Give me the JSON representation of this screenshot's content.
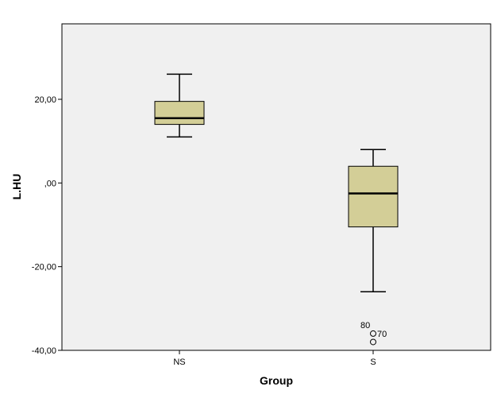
{
  "chart_data": {
    "type": "boxplot",
    "xlabel": "Group",
    "ylabel": "L.HU",
    "ylim": [
      -40,
      40
    ],
    "yticks": [
      -40,
      -20,
      0,
      20
    ],
    "ytick_labels": [
      "-40,00",
      "-20,00",
      ",00",
      "20,00"
    ],
    "categories": [
      "NS",
      "S"
    ],
    "boxes": [
      {
        "category": "NS",
        "whisker_low": 11,
        "q1": 14,
        "median": 15.5,
        "q3": 19.5,
        "whisker_high": 26,
        "outliers": []
      },
      {
        "category": "S",
        "whisker_low": -26,
        "q1": -10.5,
        "median": -2.5,
        "q3": 4,
        "whisker_high": 8,
        "outliers": [
          {
            "value": -36,
            "label": "80 70"
          },
          {
            "value": -38,
            "label": ""
          }
        ]
      }
    ],
    "grid": false,
    "colors": {
      "plot_bg": "#f0f0f0",
      "box_fill": "#d3ce97",
      "stroke": "#000000"
    }
  }
}
